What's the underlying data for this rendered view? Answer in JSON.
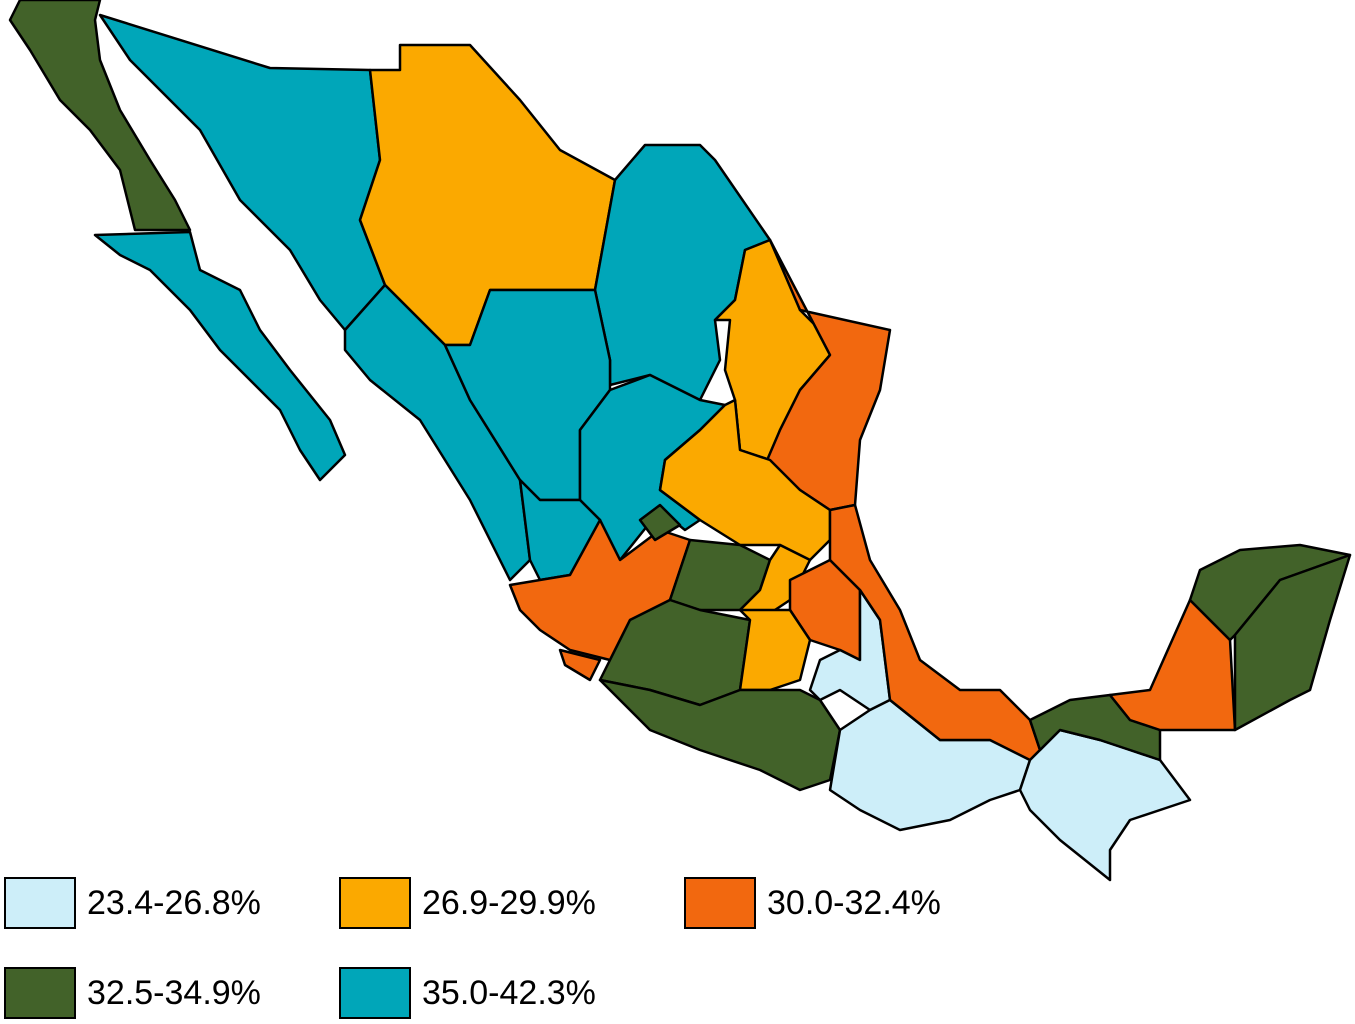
{
  "legend": {
    "items": [
      {
        "label": "23.4-26.8%",
        "color": "#cdeef9"
      },
      {
        "label": "26.9-29.9%",
        "color": "#fba900"
      },
      {
        "label": "30.0-32.4%",
        "color": "#f2680f"
      },
      {
        "label": "32.5-34.9%",
        "color": "#426229"
      },
      {
        "label": "35.0-42.3%",
        "color": "#00a6b9"
      }
    ]
  }
}
